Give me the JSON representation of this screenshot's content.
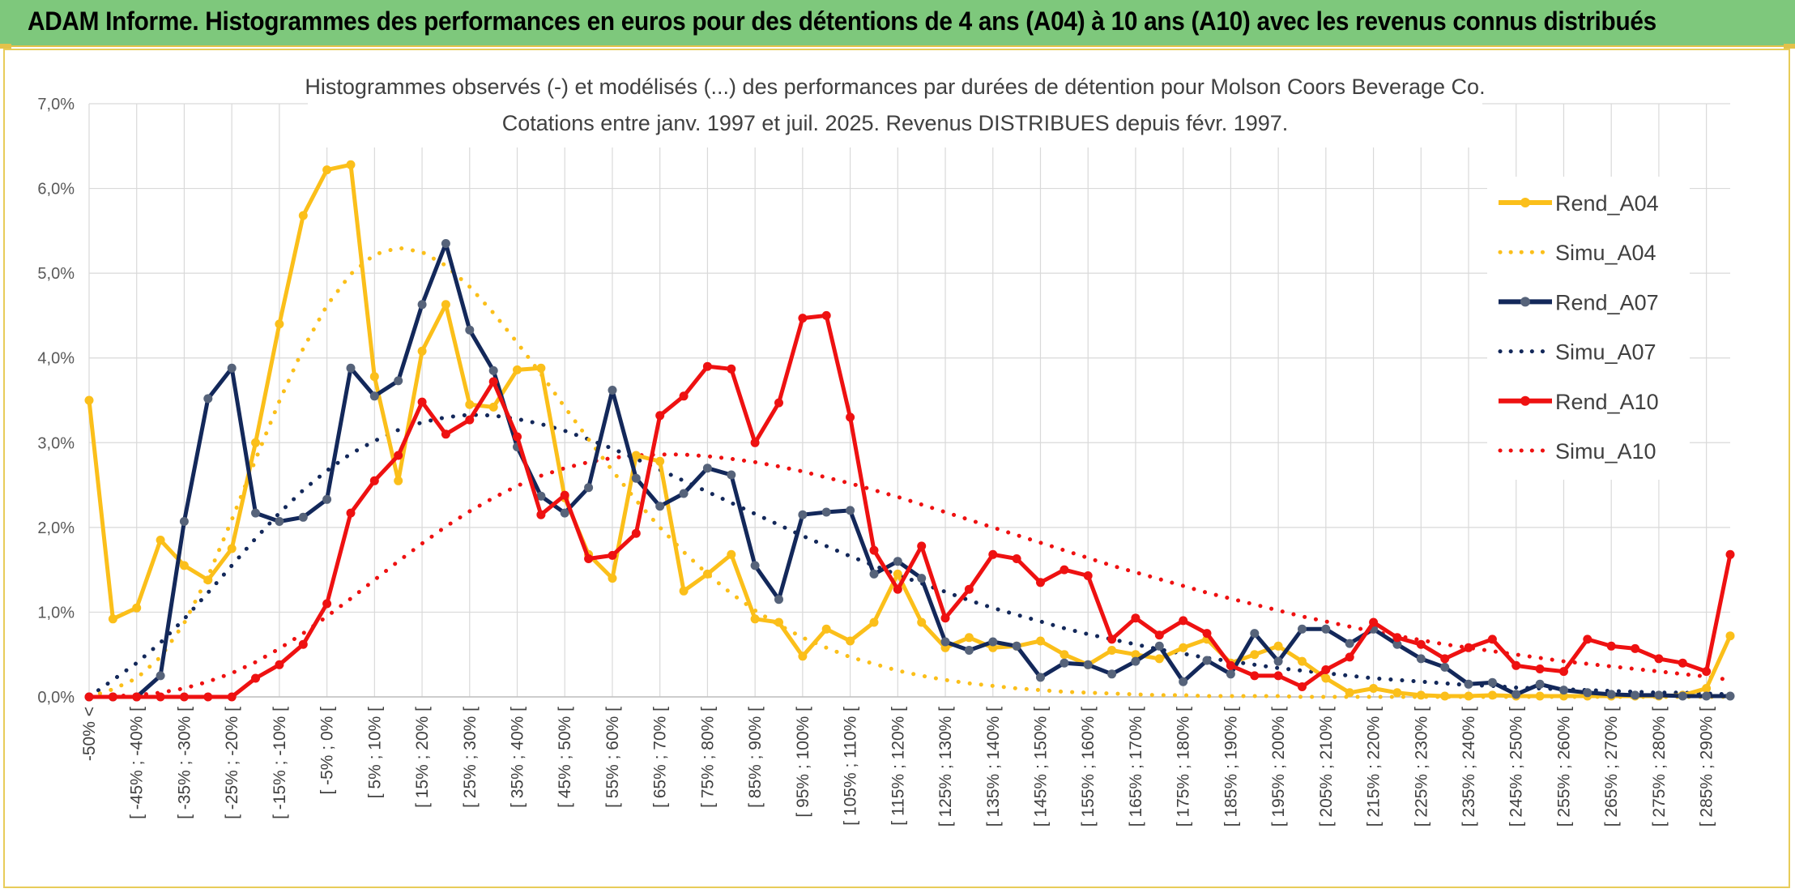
{
  "banner": {
    "title": "ADAM Informe. Histogrammes des performances en euros pour des détentions de 4 ans (A04) à 10 ans (A10) avec les revenus connus distribués"
  },
  "colors": {
    "banner_bg": "#7ec87c",
    "frame": "#e8cc5a",
    "A04": "#fbbf1a",
    "A07": "#13285a",
    "A07_marker": "#56637a",
    "A10": "#ee1111",
    "grid": "#d9d9d9"
  },
  "chart_data": {
    "type": "line",
    "title": "Histogrammes observés (-) et modélisés (...) des performances par durées de détention pour Molson Coors Beverage Co.",
    "subtitle": "Cotations entre janv. 1997 et juil. 2025. Revenus DISTRIBUES depuis févr. 1997.",
    "xlabel": "",
    "ylabel": "",
    "ylim": [
      0,
      7
    ],
    "yticks": [
      "0,0%",
      "1,0%",
      "2,0%",
      "3,0%",
      "4,0%",
      "5,0%",
      "6,0%",
      "7,0%"
    ],
    "grid": true,
    "legend_position": "right",
    "x_labels": [
      "-50% <",
      "[ -45% ; -40% [",
      "[ -35% ; -30% [",
      "[ -25% ; -20% [",
      "[ -15% ; -10% [",
      "[ -5% ; 0% [",
      "[ 5% ; 10% [",
      "[ 15% ; 20% [",
      "[ 25% ; 30% [",
      "[ 35% ; 40% [",
      "[ 45% ; 50% [",
      "[ 55% ; 60% [",
      "[ 65% ; 70% [",
      "[ 75% ; 80% [",
      "[ 85% ; 90% [",
      "[ 95% ; 100% [",
      "[ 105% ; 110% [",
      "[ 115% ; 120% [",
      "[ 125% ; 130% [",
      "[ 135% ; 140% [",
      "[ 145% ; 150% [",
      "[ 155% ; 160% [",
      "[ 165% ; 170% [",
      "[ 175% ; 180% [",
      "[ 185% ; 190% [",
      "[ 195% ; 200% [",
      "[ 205% ; 210% [",
      "[ 215% ; 220% [",
      "[ 225% ; 230% [",
      "[ 235% ; 240% [",
      "[ 245% ; 250% [",
      "[ 255% ; 260% [",
      "[ 265% ; 270% [",
      "[ 275% ; 280% [",
      "[ 285% ; 290% ["
    ],
    "series": [
      {
        "name": "Rend_A04",
        "style": "solid",
        "color": "#fbbf1a",
        "values": [
          3.5,
          0.92,
          1.05,
          1.85,
          1.55,
          1.38,
          1.75,
          3.0,
          4.4,
          5.68,
          6.22,
          6.28,
          3.78,
          2.55,
          4.08,
          4.63,
          3.45,
          3.42,
          3.86,
          3.88,
          2.35,
          1.68,
          1.4,
          2.85,
          2.78,
          1.25,
          1.45,
          1.68,
          0.92,
          0.88,
          0.48,
          0.8,
          0.66,
          0.88,
          1.45,
          0.88,
          0.58,
          0.7,
          0.58,
          0.6,
          0.66,
          0.5,
          0.38,
          0.55,
          0.5,
          0.45,
          0.58,
          0.68,
          0.4,
          0.5,
          0.6,
          0.42,
          0.22,
          0.05,
          0.1,
          0.05,
          0.02,
          0.01,
          0.01,
          0.02,
          0.01,
          0.01,
          0.01,
          0.01,
          0.01,
          0.01,
          0.01,
          0.02,
          0.1,
          0.72
        ]
      },
      {
        "name": "Simu_A04",
        "style": "dotted",
        "color": "#fbbf1a",
        "values": [
          0.0,
          0.09,
          0.22,
          0.47,
          0.87,
          1.42,
          2.09,
          2.8,
          3.49,
          4.11,
          4.62,
          4.99,
          5.22,
          5.3,
          5.25,
          5.09,
          4.84,
          4.53,
          4.18,
          3.81,
          3.42,
          3.04,
          2.67,
          2.32,
          2.0,
          1.71,
          1.45,
          1.22,
          1.02,
          0.85,
          0.7,
          0.58,
          0.47,
          0.39,
          0.31,
          0.25,
          0.2,
          0.16,
          0.13,
          0.1,
          0.08,
          0.06,
          0.05,
          0.04,
          0.03,
          0.02,
          0.02,
          0.01,
          0.01,
          0.01,
          0.01,
          0.0,
          0.0,
          0.0,
          0.0,
          0.0,
          0.0,
          0.0,
          0.0,
          0.0,
          0.0,
          0.0,
          0.0,
          0.0,
          0.0,
          0.0,
          0.0,
          0.0,
          0.0,
          0.0
        ]
      },
      {
        "name": "Rend_A07",
        "style": "solid",
        "color": "#13285a",
        "values": [
          0.0,
          0.0,
          0.0,
          0.25,
          2.07,
          3.52,
          3.88,
          2.17,
          2.07,
          2.12,
          2.33,
          3.88,
          3.55,
          3.73,
          4.63,
          5.35,
          4.33,
          3.85,
          2.95,
          2.37,
          2.17,
          2.47,
          3.62,
          2.58,
          2.25,
          2.4,
          2.7,
          2.62,
          1.55,
          1.15,
          2.15,
          2.18,
          2.2,
          1.45,
          1.6,
          1.4,
          0.65,
          0.55,
          0.65,
          0.6,
          0.23,
          0.4,
          0.38,
          0.27,
          0.42,
          0.6,
          0.18,
          0.43,
          0.27,
          0.75,
          0.42,
          0.8,
          0.8,
          0.63,
          0.8,
          0.62,
          0.45,
          0.35,
          0.15,
          0.17,
          0.03,
          0.15,
          0.08,
          0.05,
          0.03,
          0.02,
          0.02,
          0.01,
          0.01,
          0.01
        ]
      },
      {
        "name": "Simu_A07",
        "style": "dotted",
        "color": "#13285a",
        "values": [
          0.0,
          0.2,
          0.4,
          0.64,
          0.92,
          1.23,
          1.55,
          1.87,
          2.17,
          2.44,
          2.67,
          2.87,
          3.02,
          3.15,
          3.24,
          3.3,
          3.33,
          3.32,
          3.28,
          3.22,
          3.14,
          3.04,
          2.93,
          2.81,
          2.68,
          2.55,
          2.42,
          2.29,
          2.16,
          2.03,
          1.9,
          1.78,
          1.66,
          1.55,
          1.44,
          1.34,
          1.24,
          1.14,
          1.05,
          0.97,
          0.89,
          0.81,
          0.74,
          0.68,
          0.62,
          0.56,
          0.51,
          0.46,
          0.42,
          0.38,
          0.34,
          0.31,
          0.28,
          0.25,
          0.22,
          0.2,
          0.18,
          0.16,
          0.14,
          0.13,
          0.11,
          0.1,
          0.09,
          0.08,
          0.07,
          0.06,
          0.05,
          0.05,
          0.04,
          0.03
        ]
      },
      {
        "name": "Rend_A10",
        "style": "solid",
        "color": "#ee1111",
        "values": [
          0.0,
          0.0,
          0.0,
          0.0,
          0.0,
          0.0,
          0.0,
          0.22,
          0.38,
          0.62,
          1.1,
          2.17,
          2.55,
          2.85,
          3.48,
          3.1,
          3.27,
          3.72,
          3.07,
          2.15,
          2.38,
          1.63,
          1.67,
          1.93,
          3.32,
          3.55,
          3.9,
          3.87,
          3.0,
          3.47,
          4.47,
          4.5,
          3.3,
          1.73,
          1.27,
          1.78,
          0.93,
          1.27,
          1.68,
          1.63,
          1.35,
          1.5,
          1.43,
          0.68,
          0.93,
          0.73,
          0.9,
          0.75,
          0.37,
          0.25,
          0.25,
          0.12,
          0.32,
          0.47,
          0.88,
          0.7,
          0.62,
          0.45,
          0.58,
          0.68,
          0.37,
          0.33,
          0.3,
          0.68,
          0.6,
          0.57,
          0.45,
          0.4,
          0.3,
          1.68
        ]
      },
      {
        "name": "Simu_A10",
        "style": "dotted",
        "color": "#ee1111",
        "values": [
          0.0,
          0.01,
          0.02,
          0.05,
          0.1,
          0.18,
          0.28,
          0.41,
          0.57,
          0.75,
          0.95,
          1.16,
          1.38,
          1.6,
          1.81,
          2.01,
          2.19,
          2.35,
          2.49,
          2.61,
          2.7,
          2.77,
          2.82,
          2.85,
          2.86,
          2.86,
          2.84,
          2.81,
          2.77,
          2.72,
          2.66,
          2.59,
          2.52,
          2.44,
          2.36,
          2.27,
          2.18,
          2.09,
          2.0,
          1.91,
          1.82,
          1.73,
          1.64,
          1.55,
          1.47,
          1.39,
          1.31,
          1.23,
          1.16,
          1.09,
          1.02,
          0.95,
          0.89,
          0.83,
          0.77,
          0.72,
          0.67,
          0.62,
          0.58,
          0.54,
          0.5,
          0.46,
          0.42,
          0.39,
          0.36,
          0.33,
          0.3,
          0.27,
          0.24,
          0.2
        ]
      }
    ]
  }
}
